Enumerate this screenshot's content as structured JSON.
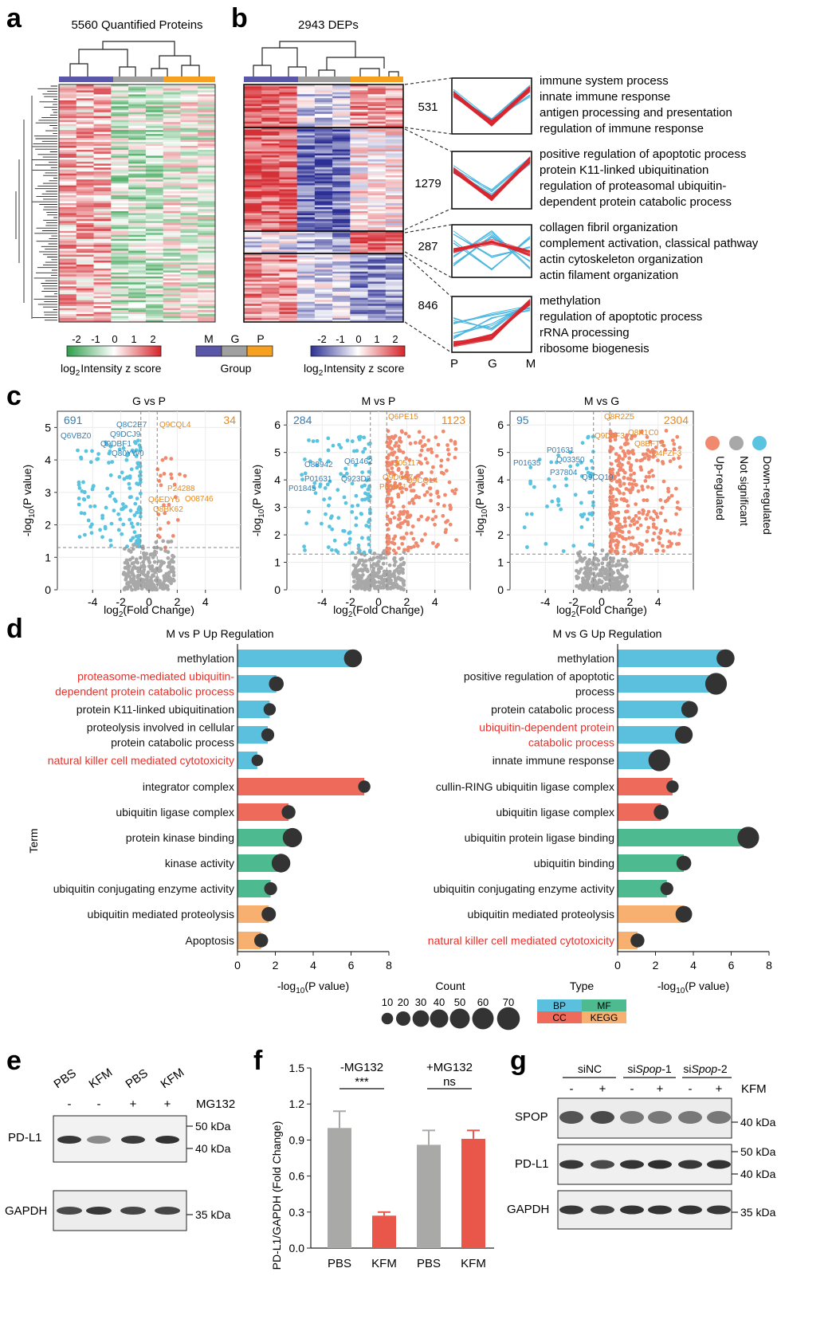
{
  "panels": {
    "a": {
      "letter": "a",
      "title": "5560 Quantified Proteins",
      "legend_ticks": [
        "-2",
        "-1",
        "0",
        "1",
        "2"
      ],
      "legend_label_prefix": "log",
      "legend_label_sub": "2",
      "legend_label_suffix": "Intensity z score"
    },
    "b": {
      "letter": "b",
      "title": "2943 DEPs",
      "group_legend": {
        "labels": [
          "M",
          "G",
          "P"
        ],
        "caption": "Group"
      },
      "legend_ticks": [
        "-2",
        "-1",
        "0",
        "1",
        "2"
      ],
      "legend_label_prefix": "log",
      "legend_label_sub": "2",
      "legend_label_suffix": "Intensity z score",
      "clusters": [
        {
          "count": "531",
          "terms": [
            "immune system process",
            "innate immune response",
            "antigen processing and presentation",
            "regulation of immune response"
          ]
        },
        {
          "count": "1279",
          "terms": [
            "positive regulation of apoptotic process",
            "protein K11-linked ubiquitination",
            "regulation of proteasomal ubiquitin-",
            "dependent protein catabolic process"
          ]
        },
        {
          "count": "287",
          "terms": [
            "collagen fibril organization",
            "complement activation, classical pathway",
            "actin cytoskeleton organization",
            "actin filament organization"
          ]
        },
        {
          "count": "846",
          "terms": [
            "methylation",
            "regulation of apoptotic process",
            "rRNA processing",
            "ribosome biogenesis"
          ]
        }
      ],
      "trend_axis": [
        "P",
        "G",
        "M"
      ]
    },
    "c": {
      "letter": "c",
      "ylabel_prefix": "-log",
      "ylabel_sub": "10",
      "ylabel_suffix": "(P value)",
      "xlabel_prefix": "log",
      "xlabel_sub": "2",
      "xlabel_suffix": "(Fold Change)",
      "legend": [
        "Up-regulated",
        "Not significant",
        "Down-regulated"
      ],
      "plots": [
        {
          "title": "G vs P",
          "down": "691",
          "up": "34",
          "yticks": [
            "0",
            "1",
            "2",
            "3",
            "4",
            "5"
          ],
          "labels": [
            "Q6VBZ0",
            "Q8C2E7",
            "Q9DCJ9",
            "Q9DBF1",
            "Q80YW0",
            "Q9CQL4",
            "P24288",
            "Q6EDY6",
            "O08746",
            "Q8BK62"
          ]
        },
        {
          "title": "M vs P",
          "down": "284",
          "up": "1123",
          "yticks": [
            "0",
            "1",
            "2",
            "3",
            "4",
            "5",
            "6"
          ],
          "labels": [
            "O88942",
            "Q61462",
            "P01631",
            "Q923D2",
            "P01845",
            "Q6PE15",
            "Q05117",
            "Q9D6S7",
            "P61971",
            "Q9CQL4"
          ]
        },
        {
          "title": "M vs G",
          "down": "95",
          "up": "2304",
          "yticks": [
            "0",
            "1",
            "2",
            "3",
            "4",
            "5",
            "6"
          ],
          "labels": [
            "P01631",
            "P01635",
            "Q03350",
            "P37804",
            "Q9CQ19",
            "Q8R2Z5",
            "Q9D0F3",
            "Q8K1C0",
            "Q8BFT2",
            "Q4FZF3"
          ]
        }
      ],
      "xticks": [
        "-4",
        "-2",
        "0",
        "2",
        "4"
      ]
    },
    "d": {
      "letter": "d",
      "yaxis_label": "Term",
      "xlabel_prefix": "-log",
      "xlabel_sub": "10",
      "xlabel_suffix": "(P value)",
      "xticks": [
        "0",
        "2",
        "4",
        "6",
        "8"
      ],
      "count_legend": {
        "title": "Count",
        "values": [
          "10",
          "20",
          "30",
          "40",
          "50",
          "60",
          "70"
        ]
      },
      "type_legend": {
        "title": "Type",
        "items": [
          "BP",
          "MF",
          "CC",
          "KEGG"
        ]
      },
      "colors": {
        "BP": "#5bc0de",
        "MF": "#4dbb8f",
        "CC": "#ee6a5a",
        "KEGG": "#f7b070",
        "highlight": "#e8302a"
      }
    },
    "e": {
      "letter": "e",
      "lanes": [
        "PBS",
        "KFM",
        "PBS",
        "KFM"
      ],
      "mg132": [
        "-",
        "-",
        "+",
        "+"
      ],
      "mg132_label": "MG132",
      "rows": [
        "PD-L1",
        "GAPDH"
      ],
      "markers": [
        "50 kDa",
        "40 kDa",
        "35 kDa"
      ]
    },
    "f": {
      "letter": "f",
      "groups": [
        "-MG132",
        "+MG132"
      ],
      "significance": [
        "***",
        "ns"
      ],
      "ylabel": "PD-L1/GAPDH (Fold Change)",
      "yticks": [
        "0.0",
        "0.3",
        "0.6",
        "0.9",
        "1.2",
        "1.5"
      ],
      "categories": [
        "PBS",
        "KFM",
        "PBS",
        "KFM"
      ]
    },
    "g": {
      "letter": "g",
      "groups": [
        "siNC",
        "siSpop-1",
        "siSpop-2"
      ],
      "group_prefix": [
        "",
        "si",
        "si"
      ],
      "group_italic": [
        "",
        "Spop",
        "Spop"
      ],
      "group_suffix": [
        "",
        "-1",
        "-2"
      ],
      "kfm": [
        "-",
        "+",
        "-",
        "+",
        "-",
        "+"
      ],
      "kfm_label": "KFM",
      "rows": [
        "SPOP",
        "PD-L1",
        "GAPDH"
      ],
      "markers": [
        "40 kDa",
        "50 kDa",
        "40 kDa",
        "35 kDa"
      ]
    }
  },
  "chart_data": [
    {
      "type": "bar",
      "title": "M vs P Up Regulation",
      "xlabel": "-log10(P value)",
      "ylabel": "Term",
      "xlim": [
        0,
        8
      ],
      "categories": [
        "methylation",
        "proteasome-mediated ubiquitin-dependent protein catabolic process",
        "protein K11-linked ubiquitination",
        "proteolysis involved in cellular protein catabolic process",
        "natural killer cell mediated cytotoxicity",
        "integrator complex",
        "ubiquitin ligase complex",
        "protein kinase binding",
        "kinase activity",
        "ubiquitin conjugating enzyme activity",
        "ubiquitin mediated proteolysis",
        "Apoptosis"
      ],
      "label_lines": [
        [
          "methylation"
        ],
        [
          "proteasome-mediated ubiquitin-",
          "dependent protein catabolic process"
        ],
        [
          "protein K11-linked ubiquitination"
        ],
        [
          "proteolysis involved in cellular",
          "protein catabolic process"
        ],
        [
          "natural killer cell mediated cytotoxicity"
        ],
        [
          "integrator complex"
        ],
        [
          "ubiquitin ligase complex"
        ],
        [
          "protein kinase binding"
        ],
        [
          "kinase activity"
        ],
        [
          "ubiquitin conjugating enzyme activity"
        ],
        [
          "ubiquitin mediated proteolysis"
        ],
        [
          "Apoptosis"
        ]
      ],
      "values": [
        6.1,
        2.05,
        1.7,
        1.6,
        1.05,
        6.7,
        2.7,
        2.9,
        2.3,
        1.75,
        1.65,
        1.25
      ],
      "counts": [
        38,
        22,
        12,
        14,
        10,
        12,
        18,
        45,
        42,
        14,
        20,
        18
      ],
      "types": [
        "BP",
        "BP",
        "BP",
        "BP",
        "BP",
        "CC",
        "CC",
        "MF",
        "MF",
        "MF",
        "KEGG",
        "KEGG"
      ],
      "highlighted": [
        false,
        true,
        false,
        false,
        true,
        false,
        false,
        false,
        false,
        false,
        false,
        false
      ]
    },
    {
      "type": "bar",
      "title": "M vs G Up Regulation",
      "xlabel": "-log10(P value)",
      "xlim": [
        0,
        8
      ],
      "categories": [
        "methylation",
        "positive regulation of apoptotic process",
        "protein catabolic process",
        "ubiquitin-dependent protein catabolic process",
        "innate immune response",
        "cullin-RING ubiquitin ligase complex",
        "ubiquitin ligase complex",
        "ubiquitin protein ligase binding",
        "ubiquitin binding",
        "ubiquitin conjugating enzyme activity",
        "ubiquitin mediated proteolysis",
        "natural killer cell mediated cytotoxicity"
      ],
      "label_lines": [
        [
          "methylation"
        ],
        [
          "positive regulation of apoptotic",
          "process"
        ],
        [
          "protein catabolic process"
        ],
        [
          "ubiquitin-dependent protein",
          "catabolic process"
        ],
        [
          "innate immune response"
        ],
        [
          "cullin-RING ubiquitin ligase complex"
        ],
        [
          "ubiquitin ligase complex"
        ],
        [
          "ubiquitin protein ligase binding"
        ],
        [
          "ubiquitin binding"
        ],
        [
          "ubiquitin conjugating enzyme activity"
        ],
        [
          "ubiquitin mediated proteolysis"
        ],
        [
          "natural killer cell mediated cytotoxicity"
        ]
      ],
      "values": [
        5.7,
        5.2,
        3.8,
        3.5,
        2.2,
        2.9,
        2.3,
        6.9,
        3.5,
        2.6,
        3.5,
        1.05
      ],
      "counts": [
        38,
        62,
        30,
        36,
        62,
        12,
        22,
        62,
        22,
        14,
        30,
        18
      ],
      "types": [
        "BP",
        "BP",
        "BP",
        "BP",
        "BP",
        "CC",
        "CC",
        "MF",
        "MF",
        "MF",
        "KEGG",
        "KEGG"
      ],
      "highlighted": [
        false,
        false,
        false,
        true,
        false,
        false,
        false,
        false,
        false,
        false,
        false,
        true
      ]
    },
    {
      "type": "bar",
      "title": "",
      "ylabel": "PD-L1/GAPDH (Fold Change)",
      "ylim": [
        0,
        1.5
      ],
      "categories": [
        "PBS",
        "KFM",
        "PBS",
        "KFM"
      ],
      "values": [
        1.0,
        0.27,
        0.86,
        0.91
      ],
      "errors": [
        0.14,
        0.03,
        0.12,
        0.07
      ],
      "colors": [
        "#a9aaa8",
        "#e8574a",
        "#a9aaa8",
        "#e8574a"
      ]
    }
  ]
}
